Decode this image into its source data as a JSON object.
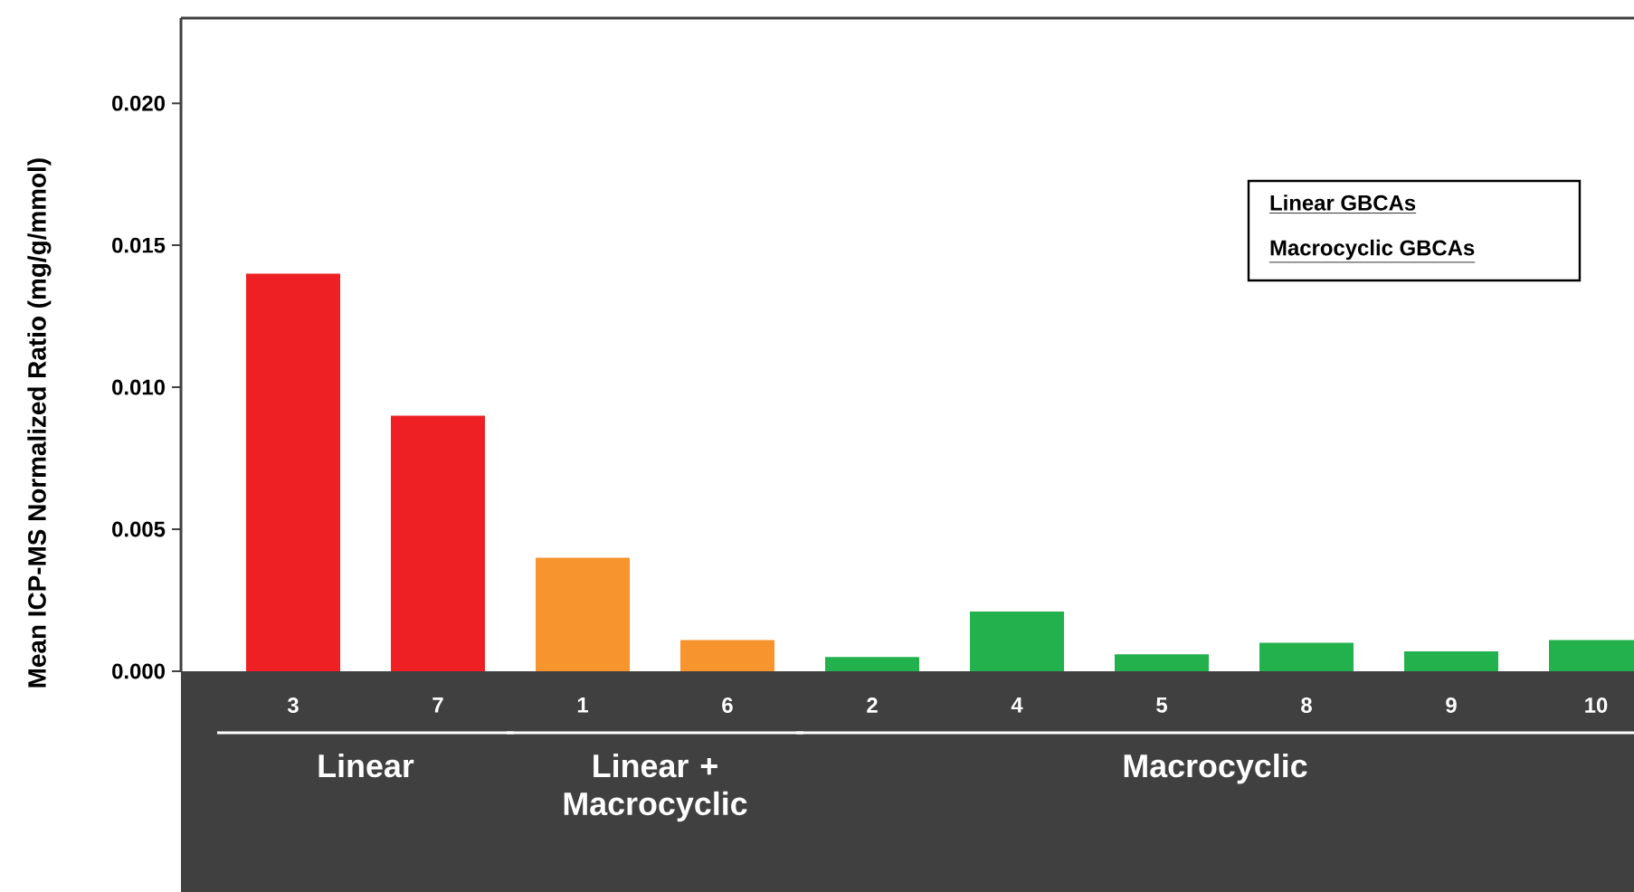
{
  "chart_data": {
    "type": "bar",
    "ylabel": "Mean ICP-MS Normalized Ratio (mg/g/mmol)",
    "categories": [
      "3",
      "7",
      "1",
      "6",
      "2",
      "4",
      "5",
      "8",
      "9",
      "10"
    ],
    "values": [
      0.014,
      0.009,
      0.004,
      0.0011,
      0.0005,
      0.0021,
      0.0006,
      0.001,
      0.0007,
      0.0011
    ],
    "colors": [
      "#ee2024",
      "#ee2024",
      "#f7942e",
      "#f7942e",
      "#22b14c",
      "#22b14c",
      "#22b14c",
      "#22b14c",
      "#22b14c",
      "#22b14c"
    ],
    "ylim": [
      0,
      0.023
    ],
    "yticks": [
      {
        "value": 0,
        "label": "0.000"
      },
      {
        "value": 0.005,
        "label": "0.005"
      },
      {
        "value": 0.01,
        "label": "0.010"
      },
      {
        "value": 0.015,
        "label": "0.015"
      },
      {
        "value": 0.02,
        "label": "0.020"
      }
    ],
    "grid": false,
    "annotations": [
      "Linear",
      "Linear + Macrocyclic",
      "Macrocyclic",
      "Linear GBCAs",
      "Macrocyclic GBCAs"
    ]
  }
}
